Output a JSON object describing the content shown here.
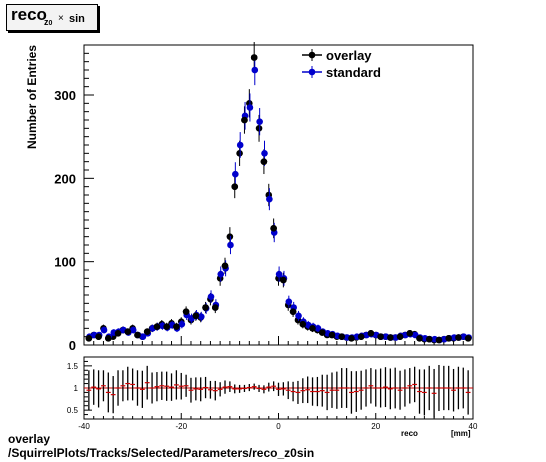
{
  "title": {
    "main": "reco",
    "sub": "z",
    "sub_index": "0",
    "mid": "×",
    "tail": "sin"
  },
  "footer": {
    "line1": "overlay",
    "line2": "/SquirrelPlots/Tracks/Selected/Parameters/reco_z0sin"
  },
  "colors": {
    "overlay": "#000000",
    "standard": "#0000cc",
    "ratio_line": "#cc0000"
  },
  "chart_data": [
    {
      "type": "scatter",
      "ylabel": "Number of Entries",
      "xlim": [
        -40,
        40
      ],
      "ylim": [
        0,
        360
      ],
      "yticks": [
        0,
        100,
        200,
        300
      ],
      "legend_position": "top-right",
      "series": [
        {
          "name": "overlay",
          "color": "#000000",
          "x": [
            -39,
            -38,
            -37,
            -36,
            -35,
            -34,
            -33,
            -32,
            -31,
            -30,
            -29,
            -28,
            -27,
            -26,
            -25,
            -24,
            -23,
            -22,
            -21,
            -20,
            -19,
            -18,
            -17,
            -16,
            -15,
            -14,
            -13,
            -12,
            -11,
            -10,
            -9,
            -8,
            -7,
            -6,
            -5,
            -4,
            -3,
            -2,
            -1,
            0,
            1,
            2,
            3,
            4,
            5,
            6,
            7,
            8,
            9,
            10,
            11,
            12,
            13,
            14,
            15,
            16,
            17,
            18,
            19,
            20,
            21,
            22,
            23,
            24,
            25,
            26,
            27,
            28,
            29,
            30,
            31,
            32,
            33,
            34,
            35,
            36,
            37,
            38,
            39
          ],
          "values": [
            8,
            12,
            10,
            20,
            8,
            10,
            14,
            18,
            16,
            20,
            12,
            10,
            16,
            20,
            22,
            25,
            22,
            26,
            22,
            28,
            40,
            30,
            35,
            33,
            45,
            55,
            45,
            80,
            95,
            130,
            190,
            230,
            270,
            290,
            345,
            260,
            220,
            180,
            140,
            80,
            78,
            48,
            40,
            30,
            25,
            22,
            20,
            18,
            15,
            12,
            12,
            10,
            10,
            9,
            8,
            9,
            10,
            12,
            14,
            12,
            10,
            10,
            9,
            9,
            10,
            12,
            14,
            13,
            8,
            7,
            7,
            6,
            6,
            7,
            8,
            8,
            9,
            10,
            8
          ]
        },
        {
          "name": "standard",
          "color": "#0000cc",
          "x": [
            -39,
            -38,
            -37,
            -36,
            -35,
            -34,
            -33,
            -32,
            -31,
            -30,
            -29,
            -28,
            -27,
            -26,
            -25,
            -24,
            -23,
            -22,
            -21,
            -20,
            -19,
            -18,
            -17,
            -16,
            -15,
            -14,
            -13,
            -12,
            -11,
            -10,
            -9,
            -8,
            -7,
            -6,
            -5,
            -4,
            -3,
            -2,
            -1,
            0,
            1,
            2,
            3,
            4,
            5,
            6,
            7,
            8,
            9,
            10,
            11,
            12,
            13,
            14,
            15,
            16,
            17,
            18,
            19,
            20,
            21,
            22,
            23,
            24,
            25,
            26,
            27,
            28,
            29,
            30,
            31,
            32,
            33,
            34,
            35,
            36,
            37,
            38,
            39
          ],
          "values": [
            10,
            12,
            12,
            18,
            10,
            15,
            16,
            18,
            15,
            18,
            12,
            10,
            14,
            20,
            22,
            23,
            21,
            24,
            20,
            25,
            36,
            32,
            36,
            34,
            44,
            58,
            48,
            85,
            92,
            120,
            205,
            240,
            275,
            285,
            330,
            268,
            230,
            175,
            135,
            85,
            80,
            52,
            45,
            35,
            28,
            24,
            22,
            20,
            16,
            14,
            13,
            11,
            10,
            9,
            9,
            10,
            11,
            12,
            13,
            12,
            10,
            10,
            9,
            9,
            11,
            12,
            13,
            12,
            9,
            8,
            7,
            7,
            6,
            7,
            8,
            9,
            9,
            10,
            9
          ]
        }
      ],
      "legend": [
        "overlay",
        "standard"
      ]
    },
    {
      "type": "scatter",
      "xlabel": "reco",
      "xunit": "[mm]",
      "xlim": [
        -40,
        40
      ],
      "ylim": [
        0.3,
        1.7
      ],
      "yticks": [
        0.5,
        1,
        1.5
      ],
      "xticks": [
        -40,
        -20,
        0,
        20,
        40
      ],
      "reference_line": 1,
      "series": [
        {
          "name": "ratio",
          "x": [
            -39,
            -38,
            -37,
            -36,
            -35,
            -34,
            -33,
            -32,
            -31,
            -30,
            -29,
            -28,
            -27,
            -26,
            -25,
            -24,
            -23,
            -22,
            -21,
            -20,
            -19,
            -18,
            -17,
            -16,
            -15,
            -14,
            -13,
            -12,
            -11,
            -10,
            -9,
            -8,
            -7,
            -6,
            -5,
            -4,
            -3,
            -2,
            -1,
            0,
            1,
            2,
            3,
            4,
            5,
            6,
            7,
            8,
            9,
            10,
            11,
            12,
            13,
            14,
            15,
            16,
            17,
            18,
            19,
            20,
            21,
            22,
            23,
            24,
            25,
            26,
            27,
            28,
            29,
            30,
            31,
            32,
            33,
            34,
            35,
            36,
            37,
            38,
            39
          ],
          "values": [
            0.95,
            1.02,
            0.98,
            1.05,
            0.9,
            0.85,
            1.0,
            1.05,
            1.1,
            1.08,
            1.0,
            0.97,
            1.12,
            1.0,
            1.03,
            1.05,
            1.04,
            1.02,
            1.07,
            1.04,
            1.05,
            0.95,
            0.98,
            0.97,
            1.01,
            0.96,
            0.94,
            0.97,
            1.02,
            1.03,
            0.98,
            0.98,
            0.99,
            1.01,
            1.03,
            0.99,
            0.97,
            1.02,
            1.04,
            0.97,
            0.98,
            0.95,
            0.92,
            0.9,
            0.94,
            0.96,
            0.92,
            0.92,
            0.94,
            0.9,
            0.95,
            0.95,
            1.0,
            1.0,
            0.9,
            0.92,
            0.95,
            1.0,
            1.05,
            1.0,
            1.0,
            1.02,
            0.98,
            1.0,
            0.95,
            1.0,
            1.05,
            1.08,
            0.92,
            0.9,
            1.0,
            0.88,
            1.0,
            1.0,
            1.0,
            0.95,
            1.0,
            1.0,
            0.9
          ],
          "errors": [
            0.45,
            0.4,
            0.42,
            0.35,
            0.45,
            0.42,
            0.4,
            0.35,
            0.38,
            0.36,
            0.4,
            0.42,
            0.38,
            0.35,
            0.33,
            0.32,
            0.33,
            0.31,
            0.33,
            0.3,
            0.25,
            0.28,
            0.26,
            0.27,
            0.24,
            0.2,
            0.22,
            0.16,
            0.15,
            0.12,
            0.1,
            0.09,
            0.08,
            0.08,
            0.07,
            0.08,
            0.09,
            0.1,
            0.11,
            0.15,
            0.15,
            0.2,
            0.22,
            0.26,
            0.28,
            0.3,
            0.32,
            0.33,
            0.36,
            0.4,
            0.4,
            0.42,
            0.45,
            0.45,
            0.48,
            0.46,
            0.44,
            0.42,
            0.4,
            0.42,
            0.44,
            0.45,
            0.46,
            0.46,
            0.44,
            0.42,
            0.4,
            0.4,
            0.5,
            0.52,
            0.5,
            0.55,
            0.52,
            0.5,
            0.5,
            0.48,
            0.48,
            0.46,
            0.5
          ]
        }
      ]
    }
  ]
}
